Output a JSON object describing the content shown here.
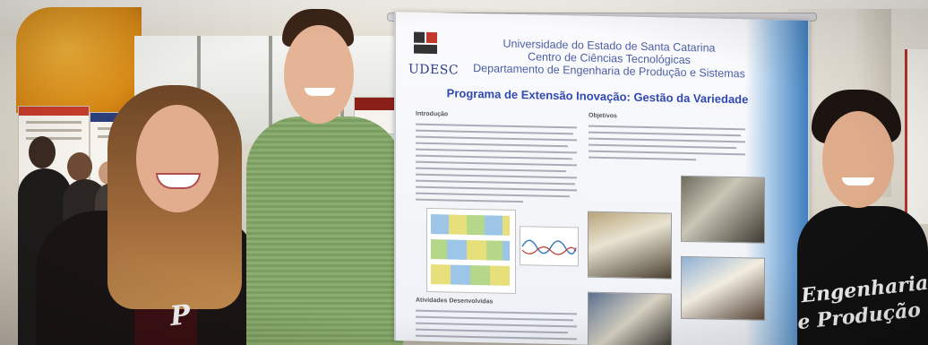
{
  "poster": {
    "logo_text": "UDESC",
    "institution_line1": "Universidade do Estado de Santa Catarina",
    "institution_line2": "Centro de Ciências Tecnológicas",
    "institution_line3": "Departamento de Engenharia de Produção e Sistemas",
    "title": "Programa de Extensão Inovação: Gestão da Variedade",
    "section_left": "Introdução",
    "section_right": "Objetivos",
    "section_bottom": "Atividades Desenvolvidas"
  },
  "shirt": {
    "line1": "Engenharia",
    "line2": "e Produção"
  },
  "colors": {
    "poster_title": "#2f49b0",
    "poster_accent": "#3f7fbf",
    "orange_wall": "#d98a16",
    "green_shirt": "#86a86a",
    "black_shirt": "#111111"
  }
}
